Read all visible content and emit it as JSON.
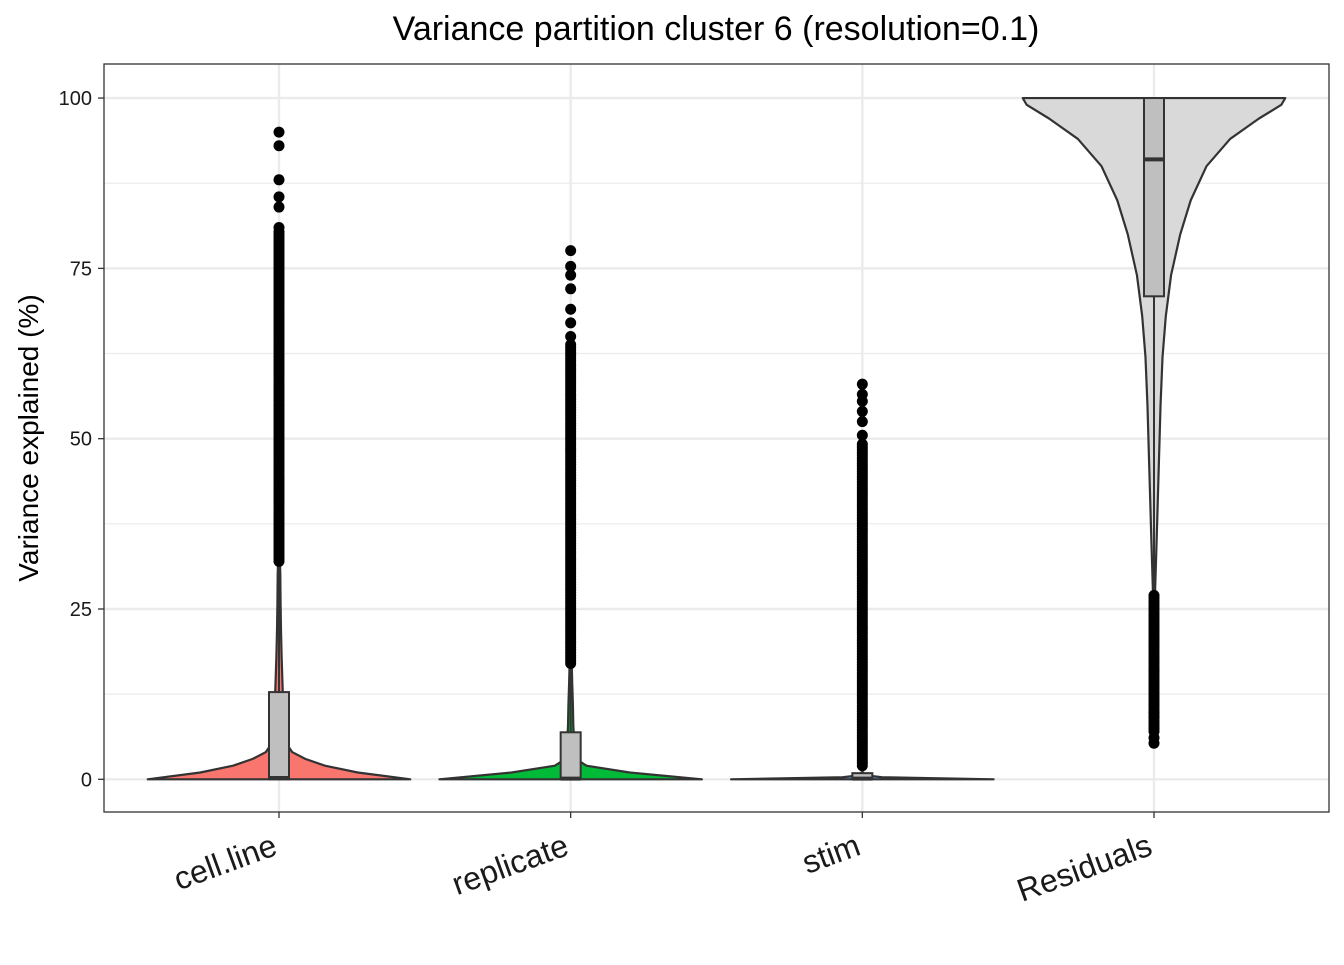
{
  "chart_data": {
    "type": "violin",
    "title": "Variance partition cluster 6 (resolution=0.1)",
    "xlabel": "",
    "ylabel": "Variance explained (%)",
    "ylim": [
      -4.8,
      105
    ],
    "y_ticks": [
      0,
      25,
      50,
      75,
      100
    ],
    "grid": true,
    "categories": [
      "cell.line",
      "replicate",
      "stim",
      "Residuals"
    ],
    "colors": {
      "cell.line": "#F8766D",
      "replicate": "#00BA38",
      "stim": "#619CFF",
      "Residuals": "#D9D9D9",
      "box_fill": "#BFBFBF",
      "outline": "#333333",
      "grid": "#EBEBEB"
    },
    "series": [
      {
        "category": "cell.line",
        "box": {
          "min": 0,
          "q1": 0,
          "median": 0.2,
          "q3": 12.8,
          "whisker_high": 31.5
        },
        "outliers_range": [
          32,
          80.5
        ],
        "outliers_extra": [
          81,
          84,
          85.5,
          88,
          93,
          95
        ],
        "density": [
          [
            0,
            1.0
          ],
          [
            1,
            0.6
          ],
          [
            2,
            0.35
          ],
          [
            3,
            0.2
          ],
          [
            4,
            0.1
          ],
          [
            5,
            0.065
          ],
          [
            6,
            0.05
          ],
          [
            8,
            0.04
          ],
          [
            10,
            0.035
          ],
          [
            12,
            0.03
          ],
          [
            15,
            0.025
          ],
          [
            18,
            0.02
          ],
          [
            22,
            0.015
          ],
          [
            26,
            0.012
          ],
          [
            30,
            0.01
          ],
          [
            31.5,
            0.008
          ]
        ]
      },
      {
        "category": "replicate",
        "box": {
          "min": 0,
          "q1": 0,
          "median": 0.1,
          "q3": 6.9,
          "whisker_high": 17
        },
        "outliers_range": [
          17,
          64
        ],
        "outliers_extra": [
          65,
          67,
          69,
          72,
          74,
          75.3,
          77.6
        ],
        "density": [
          [
            0,
            1.0
          ],
          [
            1,
            0.45
          ],
          [
            2,
            0.12
          ],
          [
            3,
            0.04
          ],
          [
            4,
            0.03
          ],
          [
            6,
            0.025
          ],
          [
            8,
            0.02
          ],
          [
            11,
            0.017
          ],
          [
            14,
            0.012
          ],
          [
            17,
            0.008
          ]
        ]
      },
      {
        "category": "stim",
        "box": {
          "min": 0,
          "q1": 0,
          "median": 0.1,
          "q3": 0.9,
          "whisker_high": 2
        },
        "outliers_range": [
          2,
          49.5
        ],
        "outliers_extra": [
          50.5,
          52.5,
          54,
          55.5,
          56.5,
          58
        ],
        "density": [
          [
            0,
            1.0
          ],
          [
            0.3,
            0.15
          ],
          [
            0.6,
            0.02
          ],
          [
            1,
            0.008
          ]
        ]
      },
      {
        "category": "Residuals",
        "box": {
          "min": 27.5,
          "q1": 70.9,
          "median": 91,
          "q3": 100,
          "whisker_high": 100
        },
        "outliers_range": [
          7,
          27
        ],
        "outliers_extra": [
          5.3,
          6.1,
          9.2,
          9.8
        ],
        "density": [
          [
            27.5,
            0.008
          ],
          [
            35,
            0.02
          ],
          [
            45,
            0.035
          ],
          [
            55,
            0.05
          ],
          [
            62,
            0.065
          ],
          [
            68,
            0.09
          ],
          [
            74,
            0.13
          ],
          [
            80,
            0.2
          ],
          [
            85,
            0.28
          ],
          [
            90,
            0.4
          ],
          [
            94,
            0.58
          ],
          [
            97,
            0.8
          ],
          [
            99,
            0.97
          ],
          [
            100,
            1.0
          ]
        ]
      }
    ]
  }
}
